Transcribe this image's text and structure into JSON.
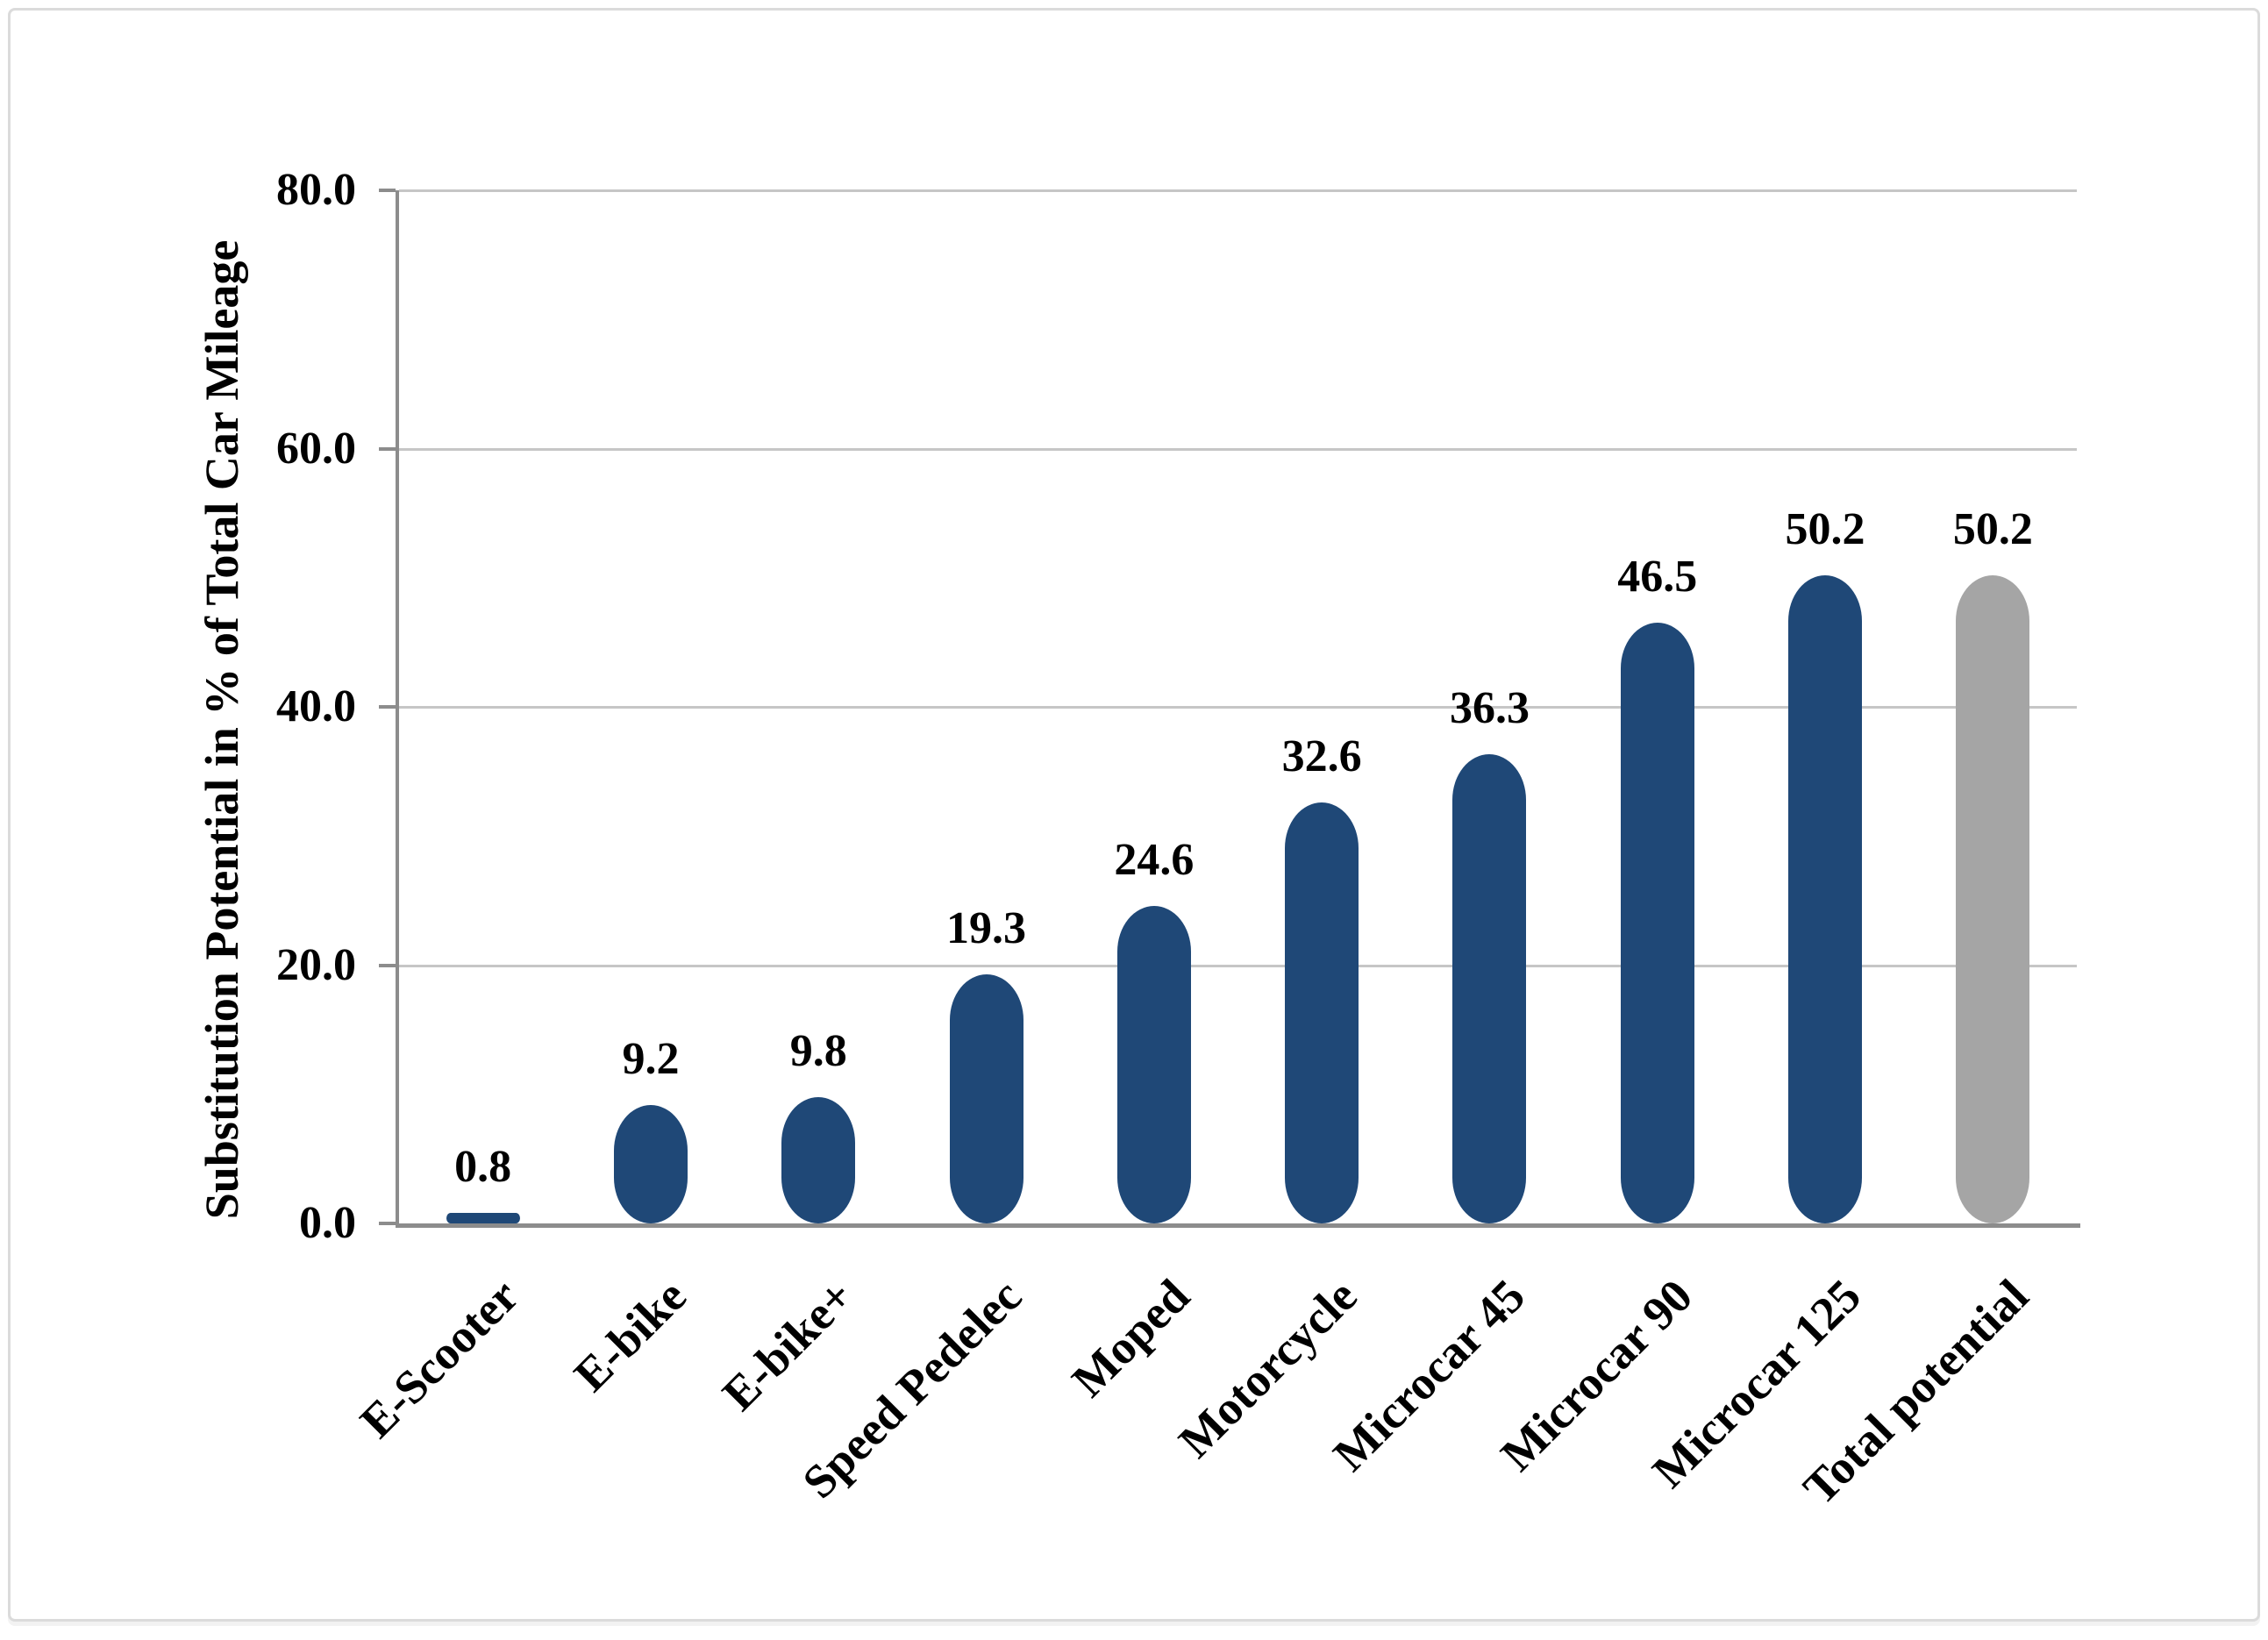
{
  "figure": {
    "background_color": "#ffffff",
    "border_color": "#dbdbdb"
  },
  "colors": {
    "bar_blue": "#1f4877",
    "bar_gray": "#a5a5a5",
    "axis_line": "#8c8c8c",
    "gridline": "#c6c6c6",
    "text": "#000000"
  },
  "chart_data": {
    "type": "bar",
    "title": "",
    "xlabel": "",
    "ylabel": "Substitution Potential in % of Total Car Mileage",
    "ylim": [
      0,
      80
    ],
    "grid": "horizontal",
    "legend": "none",
    "bar_shape": "rounded-pill",
    "data_label_position": "outside-end",
    "yticks": [
      {
        "value": 0,
        "label": "0.0"
      },
      {
        "value": 20,
        "label": "20.0"
      },
      {
        "value": 40,
        "label": "40.0"
      },
      {
        "value": 60,
        "label": "60.0"
      },
      {
        "value": 80,
        "label": "80.0"
      }
    ],
    "categories": [
      "E-Scooter",
      "E-bike",
      "E-bike+",
      "Speed Pedelec",
      "Moped",
      "Motorcycle",
      "Microcar 45",
      "Microcar 90",
      "Microcar 125",
      "Total potential"
    ],
    "values": [
      0.8,
      9.2,
      9.8,
      19.3,
      24.6,
      32.6,
      36.3,
      46.5,
      50.2,
      50.2
    ],
    "data_labels": [
      "0.8",
      "9.2",
      "9.8",
      "19.3",
      "24.6",
      "32.6",
      "36.3",
      "46.5",
      "50.2",
      "50.2"
    ],
    "bar_colors": [
      "#1f4877",
      "#1f4877",
      "#1f4877",
      "#1f4877",
      "#1f4877",
      "#1f4877",
      "#1f4877",
      "#1f4877",
      "#1f4877",
      "#a5a5a5"
    ]
  }
}
